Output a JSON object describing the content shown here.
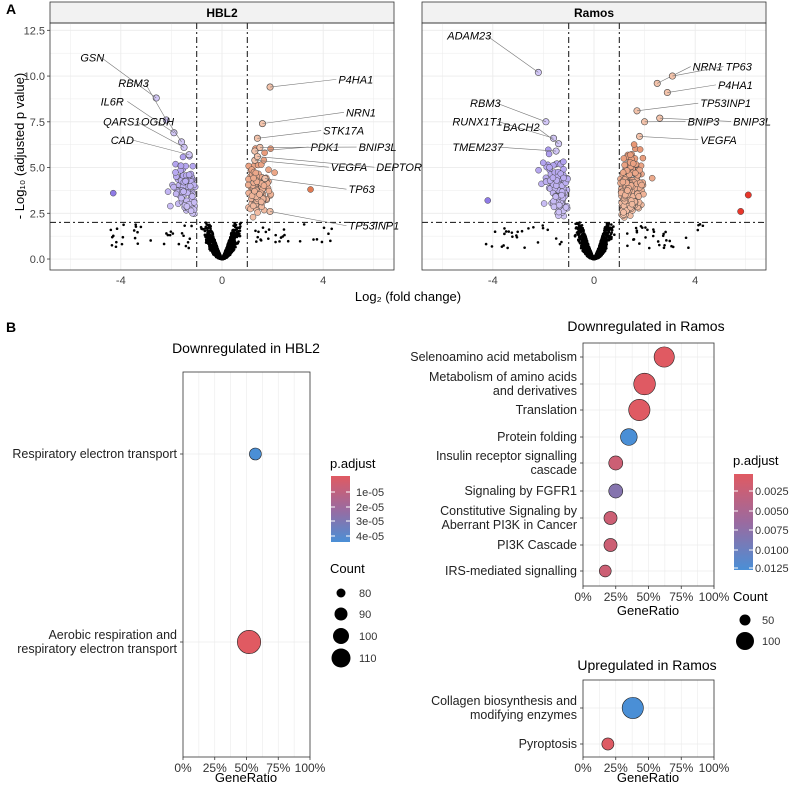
{
  "panel_labels": {
    "a": "A",
    "b": "B"
  },
  "colors": {
    "down": "#8f7be6",
    "down_light": "#d2c7f7",
    "up": "#e07a52",
    "up_light": "#f3c3ab",
    "red": "#e8362a",
    "grad_high": "#e05a62",
    "grad_low": "#4a8fd6",
    "grid": "#ebebeb"
  },
  "chart_data": [
    {
      "id": "volcano",
      "type": "scatter",
      "facets": [
        "HBL2",
        "Ramos"
      ],
      "xlabel": "Log₂ (fold change)",
      "ylabel": "- Log₁₀ (adjusted p value)",
      "xlim": [
        -6.8,
        6.8
      ],
      "ylim": [
        -0.6,
        12.9
      ],
      "xticks": [
        -4,
        0,
        4
      ],
      "yticks": [
        0.0,
        2.5,
        5.0,
        7.5,
        10.0,
        12.5
      ],
      "xtick_labels": [
        "-4",
        "0",
        "4"
      ],
      "ytick_labels": [
        "0.0",
        "2.5",
        "5.0",
        "7.5",
        "10.0",
        "12.5"
      ],
      "fc_threshold": 1,
      "p_threshold": 2,
      "labels": {
        "HBL2": [
          {
            "gene": "GSN",
            "x": -2.6,
            "y": 8.8,
            "side": "left"
          },
          {
            "gene": "RBM3",
            "x": -2.2,
            "y": 7.6,
            "side": "left"
          },
          {
            "gene": "IL6R",
            "x": -1.9,
            "y": 6.9,
            "side": "left"
          },
          {
            "gene": "OGDH",
            "x": -1.6,
            "y": 6.4,
            "side": "left"
          },
          {
            "gene": "QARS1",
            "x": -1.5,
            "y": 6.1,
            "side": "left"
          },
          {
            "gene": "CAD",
            "x": -1.3,
            "y": 5.7,
            "side": "left"
          },
          {
            "gene": "P4HA1",
            "x": 1.9,
            "y": 9.4,
            "side": "right"
          },
          {
            "gene": "NRN1",
            "x": 1.6,
            "y": 7.4,
            "side": "right"
          },
          {
            "gene": "STK17A",
            "x": 1.4,
            "y": 6.6,
            "side": "right"
          },
          {
            "gene": "PDK1",
            "x": 1.3,
            "y": 5.9,
            "side": "right"
          },
          {
            "gene": "BNIP3L",
            "x": 1.5,
            "y": 6.1,
            "side": "right"
          },
          {
            "gene": "VEGFA",
            "x": 1.3,
            "y": 5.4,
            "side": "right"
          },
          {
            "gene": "DEPTOR",
            "x": 1.4,
            "y": 5.6,
            "side": "right"
          },
          {
            "gene": "TP63",
            "x": 1.7,
            "y": 4.4,
            "side": "right"
          },
          {
            "gene": "TP53INP1",
            "x": 1.9,
            "y": 2.6,
            "side": "right"
          }
        ],
        "Ramos": [
          {
            "gene": "ADAM23",
            "x": -2.2,
            "y": 10.2,
            "side": "left"
          },
          {
            "gene": "RBM3",
            "x": -1.9,
            "y": 7.5,
            "side": "left"
          },
          {
            "gene": "RUNX1T1",
            "x": -1.6,
            "y": 6.6,
            "side": "left"
          },
          {
            "gene": "BACH2",
            "x": -1.4,
            "y": 6.3,
            "side": "left"
          },
          {
            "gene": "TMEM237",
            "x": -1.5,
            "y": 5.9,
            "side": "left"
          },
          {
            "gene": "NRN1",
            "x": 2.5,
            "y": 9.6,
            "side": "right"
          },
          {
            "gene": "TP63",
            "x": 3.1,
            "y": 10.0,
            "side": "right"
          },
          {
            "gene": "P4HA1",
            "x": 2.9,
            "y": 9.1,
            "side": "right"
          },
          {
            "gene": "TP53INP1",
            "x": 1.7,
            "y": 8.1,
            "side": "right"
          },
          {
            "gene": "BNIP3",
            "x": 2.0,
            "y": 7.5,
            "side": "right"
          },
          {
            "gene": "BNIP3L",
            "x": 2.6,
            "y": 7.7,
            "side": "right"
          },
          {
            "gene": "VEGFA",
            "x": 1.8,
            "y": 6.7,
            "side": "right"
          }
        ]
      }
    },
    {
      "id": "hbl2-down",
      "type": "scatter",
      "title": "Downregulated in HBL2",
      "xlabel": "GeneRatio",
      "xticks": [
        "0%",
        "25%",
        "50%",
        "75%",
        "100%"
      ],
      "xlim": [
        0,
        1
      ],
      "categories": [
        "Respiratory electron transport",
        "Aerobic respiration and respiratory electron transport"
      ],
      "category_lines": [
        [
          "Respiratory electron transport"
        ],
        [
          "Aerobic respiration and",
          "respiratory electron transport"
        ]
      ],
      "gene_ratio": [
        0.57,
        0.52
      ],
      "count": [
        75,
        112
      ],
      "p_adjust": [
        4.2e-05,
        2e-06
      ]
    },
    {
      "id": "ramos-down",
      "type": "scatter",
      "title": "Downregulated in Ramos",
      "xlabel": "GeneRatio",
      "xticks": [
        "0%",
        "25%",
        "50%",
        "75%",
        "100%"
      ],
      "xlim": [
        0,
        1
      ],
      "categories": [
        "Selenoamino acid metabolism",
        "Metabolism of amino acids and derivatives",
        "Translation",
        "Protein folding",
        "Insulin receptor signalling cascade",
        "Signaling by FGFR1",
        "Constitutive Signaling by Aberrant PI3K in Cancer",
        "PI3K Cascade",
        "IRS-mediated signalling"
      ],
      "category_lines": [
        [
          "Selenoamino acid metabolism"
        ],
        [
          "Metabolism of amino acids",
          "and derivatives"
        ],
        [
          "Translation"
        ],
        [
          "Protein folding"
        ],
        [
          "Insulin receptor signalling",
          "cascade"
        ],
        [
          "Signaling by FGFR1"
        ],
        [
          "Constitutive Signaling by",
          "Aberrant PI3K in Cancer"
        ],
        [
          "PI3K Cascade"
        ],
        [
          "IRS-mediated signalling"
        ]
      ],
      "gene_ratio": [
        0.62,
        0.47,
        0.43,
        0.35,
        0.25,
        0.25,
        0.21,
        0.21,
        0.17
      ],
      "count": [
        100,
        120,
        115,
        60,
        40,
        40,
        35,
        35,
        30
      ],
      "p_adjust": [
        0.0002,
        0.0003,
        0.0003,
        0.0125,
        0.002,
        0.008,
        0.002,
        0.002,
        0.002
      ]
    },
    {
      "id": "ramos-up",
      "type": "scatter",
      "title": "Upregulated in Ramos",
      "xlabel": "GeneRatio",
      "xticks": [
        "0%",
        "25%",
        "50%",
        "75%",
        "100%"
      ],
      "xlim": [
        0,
        1
      ],
      "categories": [
        "Collagen biosynthesis and modifying enzymes",
        "Pyroptosis"
      ],
      "category_lines": [
        [
          "Collagen biosynthesis and",
          "modifying enzymes"
        ],
        [
          "Pyroptosis"
        ]
      ],
      "gene_ratio": [
        0.38,
        0.19
      ],
      "count": [
        100,
        25
      ],
      "p_adjust": [
        0.0125,
        0.0004
      ]
    }
  ],
  "legends": {
    "hbl2": {
      "p_title": "p.adjust",
      "p_labels": [
        "1e-05",
        "2e-05",
        "3e-05",
        "4e-05"
      ],
      "count_title": "Count",
      "count_labels": [
        "80",
        "90",
        "100",
        "110"
      ]
    },
    "ramos": {
      "p_title": "p.adjust",
      "p_labels": [
        "0.0025",
        "0.0050",
        "0.0075",
        "0.0100",
        "0.0125"
      ],
      "count_title": "Count",
      "count_labels": [
        "50",
        "100"
      ]
    }
  }
}
